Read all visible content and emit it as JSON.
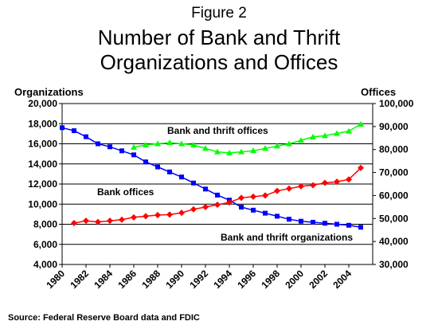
{
  "figure_label": "Figure 2",
  "title_line1": "Number of Bank and Thrift",
  "title_line2": "Organizations and Offices",
  "source": "Source: Federal Reserve Board data and FDIC",
  "chart_data": {
    "type": "line",
    "x": [
      1980,
      1981,
      1982,
      1983,
      1984,
      1985,
      1986,
      1987,
      1988,
      1989,
      1990,
      1991,
      1992,
      1993,
      1994,
      1995,
      1996,
      1997,
      1998,
      1999,
      2000,
      2001,
      2002,
      2003,
      2004,
      2005
    ],
    "xlim": [
      1980,
      2006
    ],
    "x_ticks": [
      "1980",
      "1982",
      "1984",
      "1986",
      "1988",
      "1990",
      "1992",
      "1994",
      "1996",
      "1998",
      "2000",
      "2002",
      "2004"
    ],
    "left_axis": {
      "label": "Organizations",
      "ylim": [
        4000,
        20000
      ],
      "ticks": [
        "4,000",
        "6,000",
        "8,000",
        "10,000",
        "12,000",
        "14,000",
        "16,000",
        "18,000",
        "20,000"
      ]
    },
    "right_axis": {
      "label": "Offices",
      "ylim": [
        30000,
        100000
      ],
      "ticks": [
        "30,000",
        "40,000",
        "50,000",
        "60,000",
        "70,000",
        "80,000",
        "90,000",
        "100,000"
      ]
    },
    "series": [
      {
        "name": "Bank and thrift organizations",
        "axis": "left",
        "color": "#0000ff",
        "marker": "square",
        "values": [
          17600,
          17300,
          16700,
          16000,
          15700,
          15300,
          14900,
          14200,
          13700,
          13200,
          12700,
          12100,
          11500,
          10900,
          10400,
          9700,
          9400,
          9100,
          8800,
          8500,
          8300,
          8200,
          8100,
          8000,
          7900,
          7700
        ]
      },
      {
        "name": "Bank offices",
        "axis": "right",
        "color": "#ff0000",
        "marker": "diamond",
        "values": [
          null,
          48000,
          49000,
          48500,
          49000,
          49500,
          50500,
          51000,
          51500,
          51700,
          52500,
          54000,
          55000,
          56000,
          57000,
          59000,
          59500,
          60000,
          62000,
          63000,
          64000,
          64500,
          65500,
          66000,
          67000,
          72000
        ]
      },
      {
        "name": "Bank and thrift offices",
        "axis": "right",
        "color": "#00ff00",
        "marker": "triangle",
        "values": [
          null,
          null,
          null,
          null,
          null,
          null,
          81000,
          82000,
          82500,
          83000,
          82500,
          82000,
          80500,
          79000,
          78500,
          79000,
          79500,
          80500,
          81500,
          82500,
          84000,
          85500,
          86000,
          87000,
          88000,
          91000
        ]
      }
    ],
    "annotations": [
      {
        "text": "Bank and thrift offices",
        "series": 2
      },
      {
        "text": "Bank offices",
        "series": 1
      },
      {
        "text": "Bank and thrift organizations",
        "series": 0
      }
    ],
    "grid": true,
    "legend": "none"
  }
}
